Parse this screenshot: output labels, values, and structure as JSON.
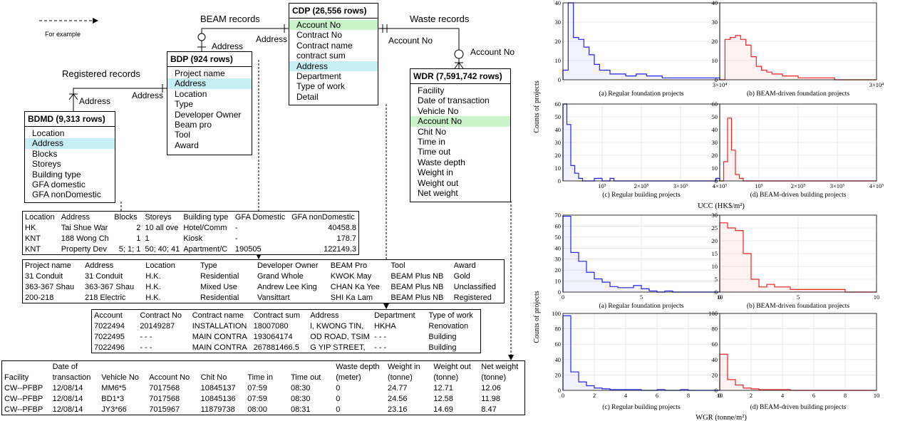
{
  "legend": {
    "label": "For example"
  },
  "relations": {
    "beam": "BEAM records",
    "waste": "Waste records",
    "registered": "Registered records",
    "address": "Address",
    "account": "Account No"
  },
  "entities": {
    "cdp": {
      "title": "CDP (26,556 rows)",
      "fields": [
        "Account No",
        "Contract No",
        "Contract name",
        "contract sum",
        "Address",
        "Department",
        "Type of work",
        "Detail"
      ]
    },
    "bdp": {
      "title": "BDP (924 rows)",
      "fields": [
        "Project name",
        "Address",
        "Location",
        "Type",
        "Developer Owner",
        "Beam pro",
        "Tool",
        "Award"
      ]
    },
    "bdmd": {
      "title": "BDMD (9,313 rows)",
      "fields": [
        "Location",
        "Address",
        "Blocks",
        "Storeys",
        "Building type",
        "GFA domestic",
        "GFA nonDomestic"
      ]
    },
    "wdr": {
      "title": "WDR (7,591,742 rows)",
      "fields": [
        "Facility",
        "Date of transaction",
        "Vehicle No",
        "Account No",
        "Chit No",
        "Time in",
        "Time out",
        "Waste depth",
        "Weight in",
        "Weight out",
        "Net weight"
      ]
    }
  },
  "tables": {
    "bdmd": {
      "headers": [
        "Location",
        "Address",
        "Blocks",
        "Storeys",
        "Building type",
        "GFA Domestic",
        "GFA nonDomestic"
      ],
      "rows": [
        [
          "HK",
          "Tai Shue War",
          "2",
          "10 all ove",
          "Hotel/Comm",
          "-",
          "40458.8"
        ],
        [
          "KNT",
          "188 Wong Ch",
          "1",
          "1",
          "Kiosk",
          "-",
          "178.7"
        ],
        [
          "KNT",
          "Property Dev",
          "5; 1; 1",
          "50; 40; 41",
          "Apartment/C",
          "190505",
          "122149.3"
        ]
      ]
    },
    "bdp": {
      "headers": [
        "Project name",
        "Address",
        "Location",
        "Type",
        "Developer Owner",
        "BEAM Pro",
        "Tool",
        "Award"
      ],
      "rows": [
        [
          "31 Conduit",
          "31 Conduit",
          "H.K.",
          "Residential",
          "Grand Whole",
          "KWOK May",
          "BEAM Plus NB",
          "Gold"
        ],
        [
          "363-367 Shau",
          "363-367 Shau",
          "H.K.",
          "Mixed Use",
          "Andrew Lee King",
          "CHAN Ka Yee",
          "BEAM Plus NB",
          "Unclassified"
        ],
        [
          "200-218",
          "218 Electric",
          "H.K.",
          "Residential",
          "Vansittart",
          "SHI Ka Lam",
          "BEAM Plus NB",
          "Registered"
        ]
      ]
    },
    "cdp": {
      "headers": [
        "Account",
        "Contract No",
        "Contract name",
        "Contract sum",
        "Address",
        "Department",
        "Type of work"
      ],
      "rows": [
        [
          "7022494",
          "20149287",
          "INSTALLATION",
          "18007080",
          "l, KWONG TIN,",
          "HKHA",
          "Renovation"
        ],
        [
          "7022495",
          "- - -",
          "MAIN CONTRA",
          "193064174",
          "OD ROAD, TSIM",
          "- - -",
          "Building"
        ],
        [
          "7022496",
          "- - -",
          "MAIN CONTRA",
          "267881466.5",
          "G YIP STREET,",
          "- - -",
          "Building"
        ]
      ]
    },
    "wdr": {
      "headers1": [
        "",
        "Date of",
        "",
        "",
        "",
        "",
        "",
        "Waste depth",
        "Weight in",
        "Weight out",
        "Net weight"
      ],
      "headers2": [
        "Facility",
        "transaction",
        "Vehicle No",
        "Account No",
        "Chit No",
        "Time in",
        "Time out",
        "(meter)",
        "(tonne)",
        "(tonne)",
        "(tonne)"
      ],
      "rows": [
        [
          "CW--PFBP",
          "12/08/14",
          "MM6*5",
          "7017568",
          "10845137",
          "07:59",
          "08:30",
          "0",
          "24.77",
          "12.71",
          "12.06"
        ],
        [
          "CW--PFBP",
          "12/08/14",
          "BD1*3",
          "7017568",
          "10845136",
          "07:59",
          "08:30",
          "0",
          "24.56",
          "12.58",
          "11.98"
        ],
        [
          "CW--PFBP",
          "12/08/14",
          "JY3*66",
          "7015967",
          "11879738",
          "08:00",
          "08:31",
          "0",
          "23.16",
          "14.69",
          "8.47"
        ]
      ]
    }
  },
  "chart_data": [
    {
      "type": "bar",
      "group": "UCC",
      "ylabel": "Counts of projects",
      "xlabel": "UCC (HK$/m²)",
      "panels": [
        {
          "caption": "(a) Regular foundation projects",
          "color": "#2222ee",
          "xlim": [
            0,
            30000
          ],
          "ylim": [
            0,
            40
          ],
          "xticks": [
            {
              "v": 30000,
              "l": "3×10⁴"
            }
          ],
          "yticks": [
            0,
            10,
            20,
            30,
            40
          ],
          "bin": 1000,
          "values": [
            5,
            40,
            22,
            21,
            17,
            13,
            8,
            5,
            5,
            3,
            3,
            3,
            2,
            2,
            3,
            3,
            2,
            2,
            2,
            1,
            1,
            1,
            1,
            1,
            1,
            1,
            1,
            1,
            1,
            1
          ]
        },
        {
          "caption": "(b) BEAM-driven foundation projects",
          "color": "#ee2222",
          "xlim": [
            0,
            30000
          ],
          "ylim": [
            0,
            40
          ],
          "xticks": [
            {
              "v": 30000,
              "l": "3×10⁴"
            }
          ],
          "yticks": [
            0,
            10,
            20,
            30,
            40
          ],
          "bin": 1000,
          "values": [
            0,
            21,
            22,
            23,
            21,
            18,
            12,
            7,
            5,
            4,
            3,
            3,
            2,
            2,
            2,
            1,
            1,
            1,
            1,
            1,
            1,
            1,
            0,
            0,
            0,
            0,
            0,
            0,
            0,
            0
          ]
        },
        {
          "caption": "(c) Regular building projects",
          "color": "#2222ee",
          "xlim": [
            0,
            400000
          ],
          "ylim": [
            0,
            60
          ],
          "xticks": [
            {
              "v": 100000,
              "l": "10⁵"
            },
            {
              "v": 200000,
              "l": "2×10⁵"
            },
            {
              "v": 300000,
              "l": "3×10⁵"
            },
            {
              "v": 400000,
              "l": "4×10⁵"
            }
          ],
          "yticks": [
            0,
            10,
            20,
            30,
            40,
            50,
            60
          ],
          "bin": 10000,
          "values": [
            63,
            44,
            12,
            6,
            2,
            0,
            0,
            0,
            2,
            2,
            0,
            0,
            2,
            0,
            0,
            0,
            0,
            0,
            0,
            0,
            0,
            0,
            0,
            0,
            0,
            0,
            0,
            0,
            0,
            0,
            0,
            0,
            0,
            0,
            0,
            0,
            0,
            0,
            0,
            2
          ]
        },
        {
          "caption": "(d) BEAM-driven building projects",
          "color": "#ee2222",
          "xlim": [
            0,
            400000
          ],
          "ylim": [
            0,
            60
          ],
          "xticks": [
            {
              "v": 100000,
              "l": "10⁵"
            },
            {
              "v": 200000,
              "l": "2×10⁵"
            },
            {
              "v": 300000,
              "l": "3×10⁵"
            },
            {
              "v": 400000,
              "l": "4×10⁵"
            }
          ],
          "yticks": [
            0,
            10,
            20,
            30,
            40,
            50,
            60
          ],
          "bin": 10000,
          "values": [
            0,
            15,
            49,
            24,
            5,
            2,
            0,
            0,
            0,
            0,
            0,
            0,
            0,
            0,
            0,
            0,
            0,
            0,
            0,
            0,
            0,
            0,
            0,
            0,
            0,
            0,
            0,
            0,
            0,
            0,
            0,
            0,
            0,
            0,
            0,
            0,
            0,
            0,
            0,
            0
          ]
        }
      ]
    },
    {
      "type": "bar",
      "group": "WGR",
      "ylabel": "Counts of projects",
      "xlabel": "WGR (tonne/m²)",
      "panels": [
        {
          "caption": "(a) Regular foundation projects",
          "color": "#2222ee",
          "xlim": [
            0,
            10
          ],
          "ylim": [
            0,
            70
          ],
          "xticks": [
            {
              "v": 0,
              "l": "0"
            },
            {
              "v": 5,
              "l": "5"
            },
            {
              "v": 10,
              "l": "10"
            }
          ],
          "yticks": [
            0,
            10,
            20,
            30,
            40,
            50,
            60,
            70
          ],
          "bin": 0.5,
          "values": [
            69,
            36,
            28,
            18,
            12,
            9,
            5,
            4,
            4,
            6,
            3,
            1,
            0,
            1,
            0,
            0,
            0,
            0,
            0,
            0
          ]
        },
        {
          "caption": "(b) BEAM-driven foundation projects",
          "color": "#ee2222",
          "xlim": [
            0,
            10
          ],
          "ylim": [
            0,
            30
          ],
          "xticks": [
            {
              "v": 0,
              "l": "0"
            },
            {
              "v": 5,
              "l": "5"
            },
            {
              "v": 10,
              "l": "10"
            }
          ],
          "yticks": [
            0,
            5,
            10,
            15,
            20,
            25,
            30
          ],
          "bin": 0.5,
          "values": [
            27,
            25,
            24,
            15,
            5,
            2,
            3,
            2,
            2,
            1,
            1,
            1,
            1,
            1,
            1,
            1,
            0,
            0,
            0,
            0
          ]
        },
        {
          "caption": "(c) Regular building projects",
          "color": "#2222ee",
          "xlim": [
            0,
            10
          ],
          "ylim": [
            0,
            100
          ],
          "xticks": [
            {
              "v": 0,
              "l": "0"
            },
            {
              "v": 2,
              "l": "2"
            },
            {
              "v": 4,
              "l": "4"
            },
            {
              "v": 6,
              "l": "6"
            },
            {
              "v": 8,
              "l": "8"
            },
            {
              "v": 10,
              "l": "10"
            }
          ],
          "yticks": [
            0,
            20,
            40,
            60,
            80,
            100
          ],
          "bin": 0.5,
          "values": [
            97,
            24,
            11,
            6,
            3,
            2,
            1,
            1,
            1,
            1,
            0,
            0,
            1,
            0,
            0,
            1,
            0,
            0,
            0,
            0
          ]
        },
        {
          "caption": "(d) BEAM-driven building projects",
          "color": "#ee2222",
          "xlim": [
            0,
            10
          ],
          "ylim": [
            0,
            100
          ],
          "xticks": [
            {
              "v": 0,
              "l": "0"
            },
            {
              "v": 2,
              "l": "2"
            },
            {
              "v": 4,
              "l": "4"
            },
            {
              "v": 6,
              "l": "6"
            },
            {
              "v": 8,
              "l": "8"
            },
            {
              "v": 10,
              "l": "10"
            }
          ],
          "yticks": [
            0,
            20,
            40,
            60,
            80,
            100
          ],
          "bin": 0.5,
          "values": [
            47,
            14,
            7,
            3,
            2,
            1,
            1,
            1,
            1,
            0,
            0,
            0,
            0,
            0,
            0,
            0,
            0,
            0,
            0,
            0
          ]
        }
      ]
    }
  ]
}
